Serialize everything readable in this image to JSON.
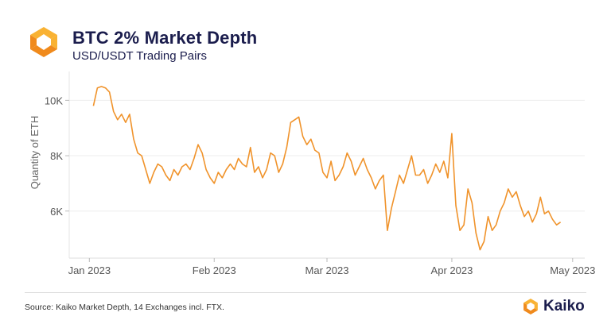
{
  "header": {
    "logo_icon": "kaiko-logo-icon",
    "title": "BTC 2% Market Depth",
    "subtitle": "USD/USDT Trading Pairs"
  },
  "footer": {
    "source": "Source: Kaiko Market Depth, 14 Exchanges incl. FTX.",
    "brand": "Kaiko",
    "brand_icon": "kaiko-logo-icon"
  },
  "colors": {
    "line": "#f0932b",
    "title": "#1b1d4d",
    "grid": "#eeeeee",
    "logo_light": "#f9b233",
    "logo_dark": "#f08a1c"
  },
  "chart_data": {
    "type": "line",
    "title": "BTC 2% Market Depth",
    "subtitle": "USD/USDT Trading Pairs",
    "xlabel": "",
    "ylabel": "Quantity of ETH",
    "x_start": "2023-01-02",
    "x_step": "1 day",
    "xlim_days_from_jan1": [
      -5,
      123
    ],
    "ylim": [
      4.3,
      10.9
    ],
    "y_unit": "thousands",
    "grid": true,
    "legend": "none",
    "yticks": [
      {
        "value": 10,
        "label": "10K"
      },
      {
        "value": 8,
        "label": "8K"
      },
      {
        "value": 6,
        "label": "6K"
      }
    ],
    "xticks": [
      {
        "day": 0,
        "label": "Jan 2023"
      },
      {
        "day": 31,
        "label": "Feb 2023"
      },
      {
        "day": 59,
        "label": "Mar 2023"
      },
      {
        "day": 90,
        "label": "Apr 2023"
      },
      {
        "day": 120,
        "label": "May 2023"
      }
    ],
    "series": [
      {
        "name": "BTC 2% Market Depth",
        "values": [
          9.8,
          10.45,
          10.5,
          10.45,
          10.3,
          9.6,
          9.3,
          9.5,
          9.2,
          9.5,
          8.6,
          8.1,
          8.0,
          7.5,
          7.0,
          7.4,
          7.7,
          7.6,
          7.3,
          7.1,
          7.5,
          7.3,
          7.6,
          7.7,
          7.5,
          7.9,
          8.4,
          8.1,
          7.5,
          7.2,
          7.0,
          7.4,
          7.2,
          7.5,
          7.7,
          7.5,
          7.9,
          7.7,
          7.6,
          8.3,
          7.4,
          7.6,
          7.2,
          7.5,
          8.1,
          8.0,
          7.4,
          7.7,
          8.3,
          9.2,
          9.3,
          9.4,
          8.7,
          8.4,
          8.6,
          8.2,
          8.1,
          7.4,
          7.2,
          7.8,
          7.1,
          7.3,
          7.6,
          8.1,
          7.8,
          7.3,
          7.6,
          7.9,
          7.5,
          7.2,
          6.8,
          7.1,
          7.3,
          5.3,
          6.1,
          6.7,
          7.3,
          7.0,
          7.5,
          8.0,
          7.3,
          7.3,
          7.5,
          7.0,
          7.3,
          7.7,
          7.4,
          7.8,
          7.2,
          8.8,
          6.2,
          5.3,
          5.5,
          6.8,
          6.3,
          5.2,
          4.6,
          4.9,
          5.8,
          5.3,
          5.5,
          6.0,
          6.3,
          6.8,
          6.5,
          6.7,
          6.2,
          5.8,
          6.0,
          5.6,
          5.9,
          6.5,
          5.9,
          6.0,
          5.7,
          5.5,
          5.6
        ]
      }
    ]
  }
}
